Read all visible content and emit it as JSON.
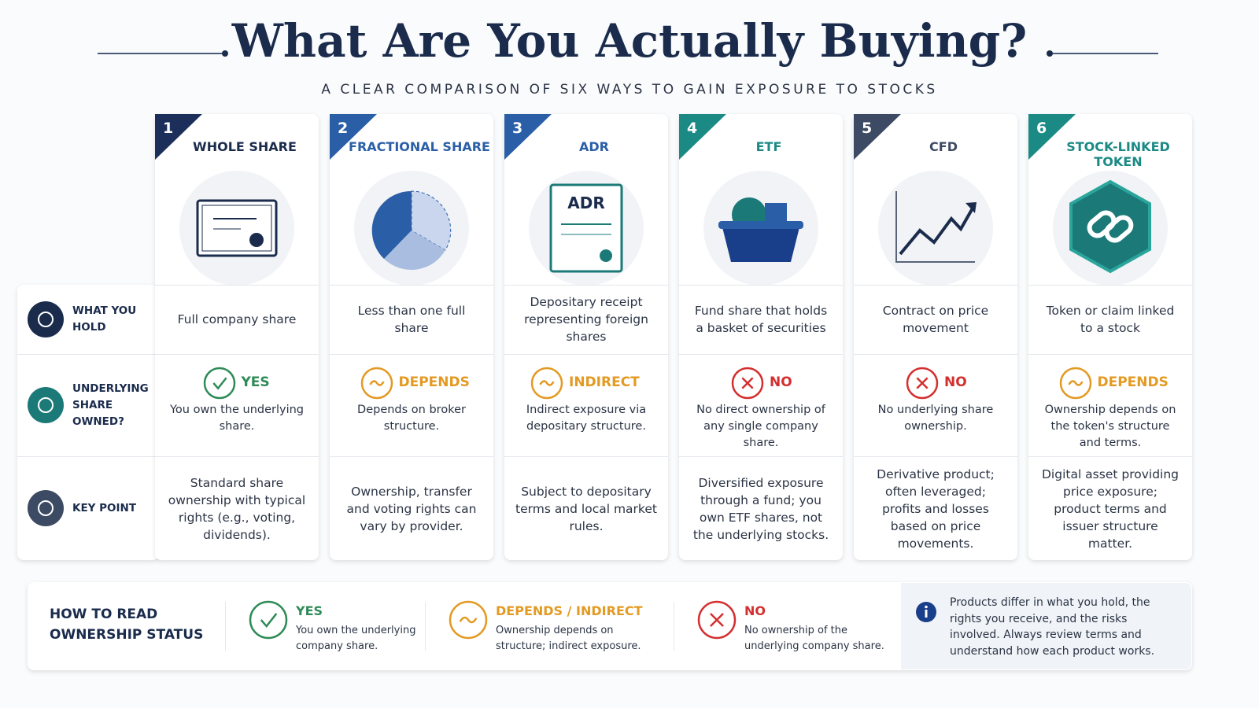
{
  "header": {
    "title": "What Are You Actually Buying?",
    "subtitle": "A CLEAR COMPARISON OF SIX WAYS TO GAIN EXPOSURE TO STOCKS"
  },
  "row_labels": [
    "WHAT YOU HOLD",
    "UNDERLYING SHARE OWNED?",
    "KEY POINT"
  ],
  "columns": [
    {
      "number": "1",
      "name": "WHOLE SHARE",
      "color": "#1b2f5a",
      "hold": "Full company share",
      "status": "YES",
      "status_color": "#2e8b57",
      "status_note": "You own the underlying share.",
      "key_point": "Standard share ownership with typical rights (e.g., voting, dividends)."
    },
    {
      "number": "2",
      "name": "FRACTIONAL SHARE",
      "color": "#2a5fa8",
      "hold": "Less than one full share",
      "status": "DEPENDS",
      "status_color": "#e39a23",
      "status_note": "Depends on broker structure.",
      "key_point": "Ownership, transfer and voting rights can vary by provider."
    },
    {
      "number": "3",
      "name": "ADR",
      "color": "#2a5fa8",
      "hold": "Depositary receipt representing foreign shares",
      "status": "INDIRECT",
      "status_color": "#e39a23",
      "status_note": "Indirect exposure via depositary structure.",
      "key_point": "Subject to depositary terms and local market rules."
    },
    {
      "number": "4",
      "name": "ETF",
      "color": "#1b8a85",
      "hold": "Fund share that holds a basket of securities",
      "status": "NO",
      "status_color": "#d42f2f",
      "status_note": "No direct ownership of any single company share.",
      "key_point": "Diversified exposure through a fund; you own ETF shares, not the underlying stocks."
    },
    {
      "number": "5",
      "name": "CFD",
      "color": "#3d4a63",
      "hold": "Contract on price movement",
      "status": "NO",
      "status_color": "#d42f2f",
      "status_note": "No underlying share ownership.",
      "key_point": "Derivative product; often leveraged; profits and losses based on price movements."
    },
    {
      "number": "6",
      "name": "STOCK-LINKED TOKEN",
      "color": "#1b8a85",
      "hold": "Token or claim linked to a stock",
      "status": "DEPENDS",
      "status_color": "#e39a23",
      "status_note": "Ownership depends on the token's structure and terms.",
      "key_point": "Digital asset providing price exposure; product terms and issuer structure matter."
    }
  ],
  "legend": {
    "title": "HOW TO READ OWNERSHIP STATUS",
    "items": [
      {
        "label": "YES",
        "color": "#2e8b57",
        "text": "You own the underlying company share."
      },
      {
        "label": "DEPENDS / INDIRECT",
        "color": "#e39a23",
        "text": "Ownership depends on structure; indirect exposure."
      },
      {
        "label": "NO",
        "color": "#d42f2f",
        "text": "No ownership of the underlying company share."
      }
    ],
    "note": "Products differ in what you hold, the rights you receive, and the risks involved. Always review terms and understand how each product works."
  }
}
